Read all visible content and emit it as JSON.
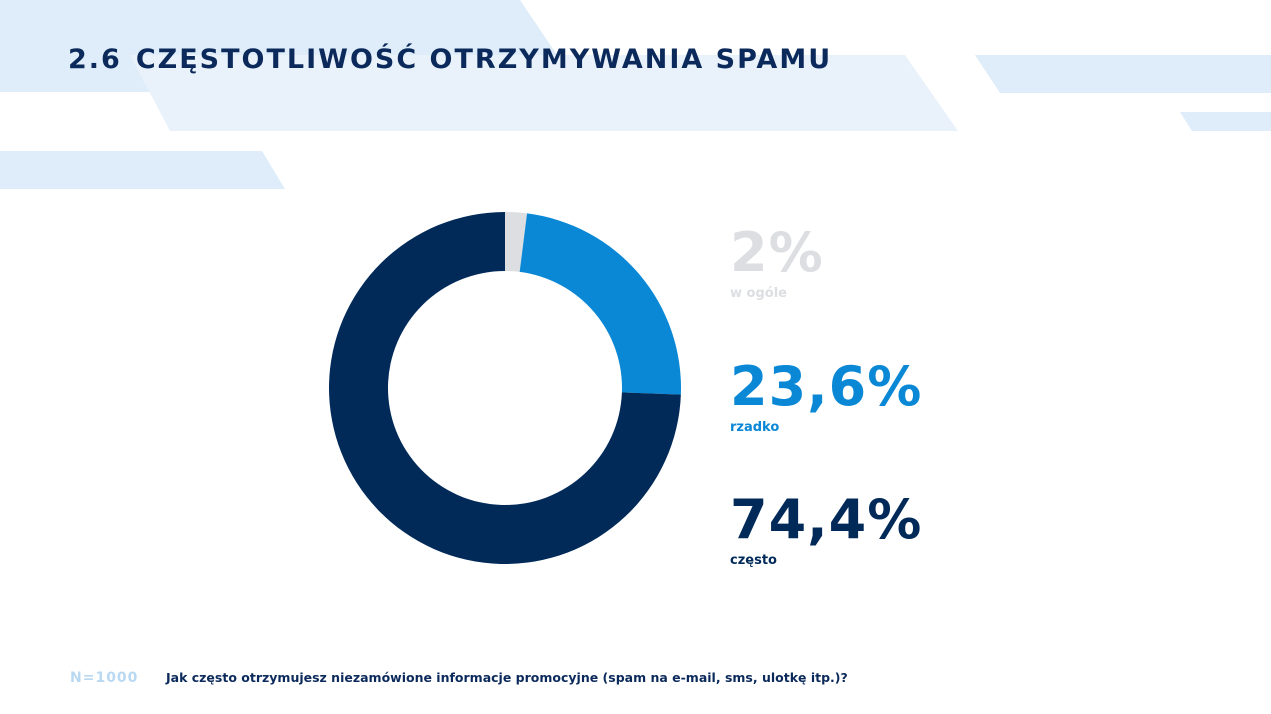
{
  "title": {
    "number": "2.6",
    "text": "CZĘSTOTLIWOŚĆ OTRZYMYWANIA SPAMU"
  },
  "chart_data": {
    "type": "pie",
    "donut": true,
    "categories": [
      "w ogóle",
      "rzadko",
      "często"
    ],
    "values": [
      2,
      23.6,
      74.4
    ],
    "value_labels": [
      "2%",
      "23,6%",
      "74,4%"
    ],
    "colors": [
      "#dcdee2",
      "#0a88d6",
      "#012a59"
    ],
    "legend_placement": "right"
  },
  "footer": {
    "n": "N=1000",
    "question": "Jak często otrzymujesz niezamówione informacje promocyjne (spam na e-mail, sms, ulotkę itp.)?"
  }
}
